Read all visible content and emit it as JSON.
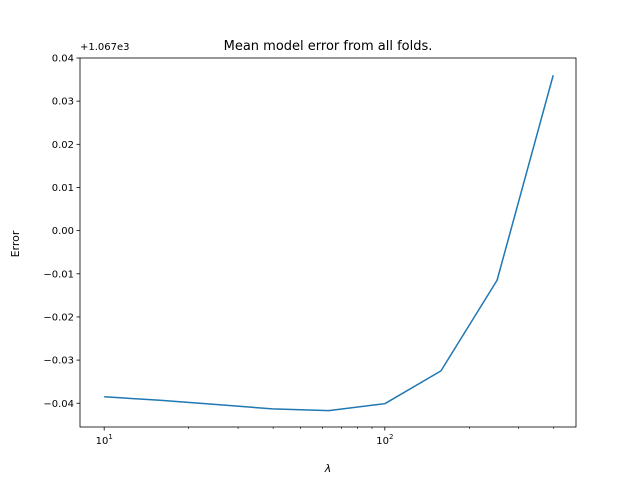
{
  "chart_data": {
    "type": "line",
    "title": "Mean model error from all folds.",
    "xlabel": "λ",
    "ylabel": "Error",
    "offset_text": "+1.067e3",
    "xscale": "log",
    "xlim": [
      8.2,
      480
    ],
    "ylim": [
      -0.0455,
      0.04
    ],
    "x_ticks": [
      {
        "value": 10,
        "base": "10",
        "exp": "1"
      },
      {
        "value": 100,
        "base": "10",
        "exp": "2"
      }
    ],
    "x_minor_ticks": [
      20,
      30,
      40,
      50,
      60,
      70,
      80,
      90,
      200,
      300,
      400
    ],
    "y_ticks": [
      {
        "value": 0.04,
        "label": "0.04"
      },
      {
        "value": 0.03,
        "label": "0.03"
      },
      {
        "value": 0.02,
        "label": "0.02"
      },
      {
        "value": 0.01,
        "label": "0.01"
      },
      {
        "value": 0.0,
        "label": "0.00"
      },
      {
        "value": -0.01,
        "label": "−0.01"
      },
      {
        "value": -0.02,
        "label": "−0.02"
      },
      {
        "value": -0.03,
        "label": "−0.03"
      },
      {
        "value": -0.04,
        "label": "−0.04"
      }
    ],
    "series": [
      {
        "color": "#1f77b4",
        "x": [
          10,
          15.8,
          25.1,
          39.8,
          63.1,
          100,
          158.5,
          251.2,
          398.1
        ],
        "y": [
          -0.0385,
          -0.0393,
          -0.0403,
          -0.0413,
          -0.0417,
          -0.0401,
          -0.0325,
          -0.0115,
          0.036
        ]
      }
    ],
    "grid": false
  }
}
